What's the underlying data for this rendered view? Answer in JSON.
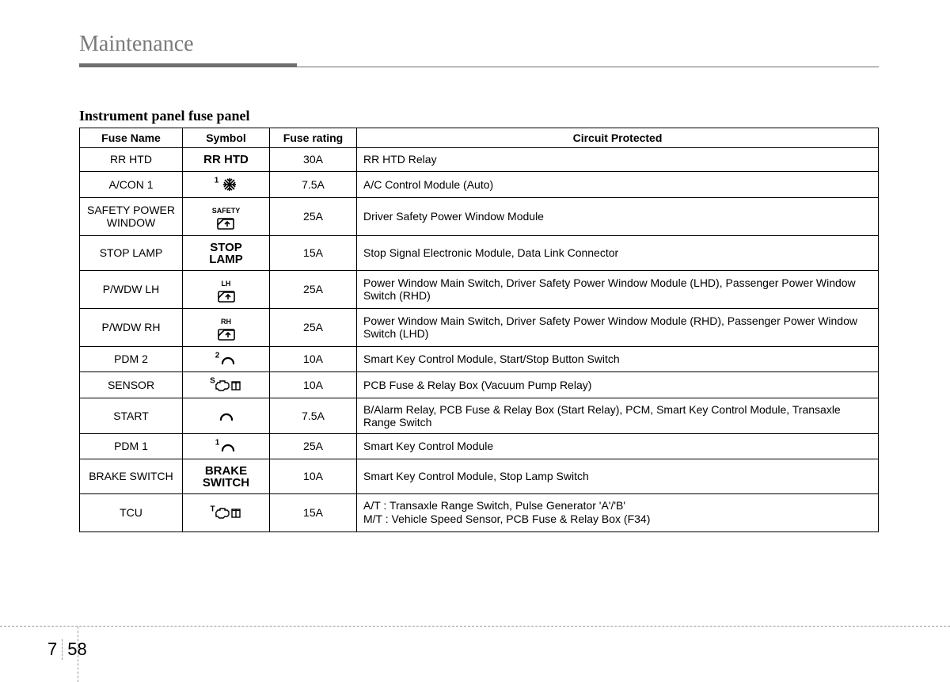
{
  "header": {
    "title": "Maintenance"
  },
  "section_title": "Instrument panel fuse panel",
  "columns": {
    "name": "Fuse Name",
    "symbol": "Symbol",
    "rating": "Fuse rating",
    "circuit": "Circuit Protected"
  },
  "rows": [
    {
      "name": "RR HTD",
      "symbol_kind": "text-bold",
      "symbol_text": "RR HTD",
      "rating": "30A",
      "circuit": "RR HTD Relay"
    },
    {
      "name": "A/CON 1",
      "symbol_kind": "snowflake",
      "symbol_prefix": "1",
      "rating": "7.5A",
      "circuit": "A/C Control Module (Auto)"
    },
    {
      "name": "SAFETY POWER WINDOW",
      "symbol_kind": "window-icon",
      "symbol_sup": "SAFETY",
      "rating": "25A",
      "circuit": "Driver Safety Power Window Module"
    },
    {
      "name": "STOP LAMP",
      "symbol_kind": "text-bold-2line",
      "symbol_line1": "STOP",
      "symbol_line2": "LAMP",
      "rating": "15A",
      "circuit": "Stop Signal Electronic Module, Data Link Connector"
    },
    {
      "name": "P/WDW LH",
      "symbol_kind": "window-icon",
      "symbol_sup": "LH",
      "rating": "25A",
      "circuit": "Power Window Main Switch, Driver Safety Power Window Module (LHD), Passenger Power Window Switch (RHD)"
    },
    {
      "name": "P/WDW RH",
      "symbol_kind": "window-icon",
      "symbol_sup": "RH",
      "rating": "25A",
      "circuit": "Power Window Main Switch, Driver Safety Power Window Module (RHD), Passenger Power Window Switch (LHD)"
    },
    {
      "name": "PDM 2",
      "symbol_kind": "arc",
      "symbol_prefix": "2",
      "rating": "10A",
      "circuit": "Smart Key Control Module, Start/Stop Button Switch"
    },
    {
      "name": "SENSOR",
      "symbol_kind": "engine",
      "symbol_prefix": "S",
      "rating": "10A",
      "circuit": "PCB Fuse & Relay Box (Vacuum Pump Relay)"
    },
    {
      "name": "START",
      "symbol_kind": "arc",
      "symbol_prefix": "",
      "rating": "7.5A",
      "circuit": "B/Alarm Relay, PCB Fuse & Relay Box (Start Relay), PCM, Smart Key Control Module, Transaxle Range Switch"
    },
    {
      "name": "PDM 1",
      "symbol_kind": "arc",
      "symbol_prefix": "1",
      "rating": "25A",
      "circuit": "Smart Key Control Module"
    },
    {
      "name": "BRAKE SWITCH",
      "symbol_kind": "text-bold-2line",
      "symbol_line1": "BRAKE",
      "symbol_line2": "SWITCH",
      "rating": "10A",
      "circuit": "Smart Key Control Module, Stop Lamp Switch"
    },
    {
      "name": "TCU",
      "symbol_kind": "engine",
      "symbol_prefix": "T",
      "rating": "15A",
      "circuit_line1": "A/T : Transaxle Range Switch, Pulse Generator 'A'/'B'",
      "circuit_line2": "M/T : Vehicle Speed Sensor, PCB Fuse & Relay Box (F34)"
    }
  ],
  "page_section": "7",
  "page_number": "58"
}
